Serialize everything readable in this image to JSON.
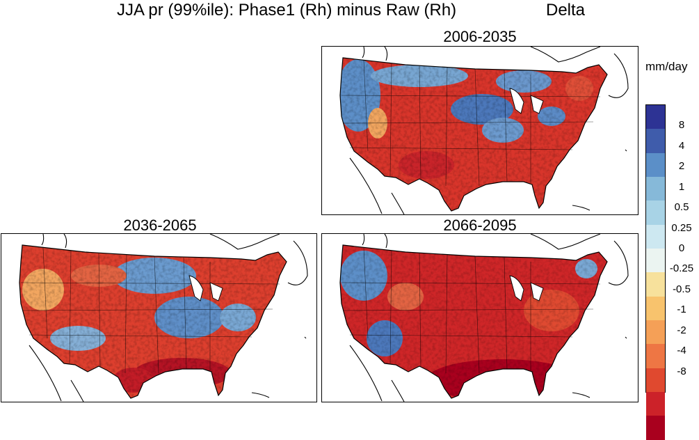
{
  "title": {
    "main": "JJA  pr (99%ile): Phase1 (Rh) minus Raw (Rh)",
    "right": "Delta"
  },
  "panels": [
    {
      "id": "p1",
      "label": "2006-2035"
    },
    {
      "id": "p2",
      "label": "2036-2065"
    },
    {
      "id": "p3",
      "label": "2066-2095"
    }
  ],
  "colorbar": {
    "units": "mm/day",
    "colors": [
      "#2d3394",
      "#3f5cab",
      "#5b8fc8",
      "#86b9d9",
      "#a8d3e6",
      "#cde8f1",
      "#ebf4f1",
      "#f7e19c",
      "#f8c36d",
      "#f5a057",
      "#ee7644",
      "#e0492f",
      "#cc2229",
      "#a9001e"
    ],
    "labels": [
      "8",
      "4",
      "2",
      "1",
      "0.5",
      "0.25",
      "0",
      "-0.25",
      "-0.5",
      "-1",
      "-2",
      "-4",
      "-8"
    ]
  },
  "legend_colors": {
    "wet": "#4a73b8",
    "dry": "#d62b24"
  }
}
